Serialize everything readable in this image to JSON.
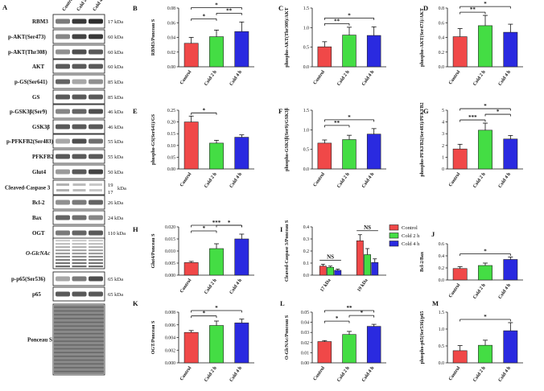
{
  "colors": {
    "control": "#f04848",
    "cold2h": "#44dd44",
    "cold4h": "#2a2ae0",
    "band": "#222222"
  },
  "western_blot": {
    "letter": "A",
    "lanes": [
      "Control",
      "Cold 2 h",
      "Cold 4 h"
    ],
    "rows": [
      {
        "label": "RBM3",
        "kda": "17 kDa"
      },
      {
        "label": "p-AKT(Ser473)",
        "kda": "60 kDa"
      },
      {
        "label": "p-AKT(Thr308)",
        "kda": "60 kDa"
      },
      {
        "label": "AKT",
        "kda": "60 kDa"
      },
      {
        "label": "p-GS(Ser641)",
        "kda": "85 kDa"
      },
      {
        "label": "GS",
        "kda": "85 kDa"
      },
      {
        "label": "p-GSK3β(Ser9)",
        "kda": "46 kDa"
      },
      {
        "label": "GSK3β",
        "kda": "46 kDa"
      },
      {
        "label": "p-PFKFB2(Ser483)",
        "kda": "55 kDa"
      },
      {
        "label": "PFKFB2",
        "kda": "55 kDa"
      },
      {
        "label": "Glut4",
        "kda": "50 kDa"
      },
      {
        "label": "Cleaved-Caspase 3",
        "kda": "19 kDa / 17 kDa"
      },
      {
        "label": "Bcl-2",
        "kda": "26 kDa"
      },
      {
        "label": "Bax",
        "kda": "24 kDa"
      },
      {
        "label": "OGT",
        "kda": "110 kDa"
      },
      {
        "label": "O-GlcNAc",
        "kda": ""
      },
      {
        "label": "p-p65(Ser536)",
        "kda": "65 kDa"
      },
      {
        "label": "p65",
        "kda": "65 kDa"
      },
      {
        "label": "Ponceau S",
        "kda": ""
      }
    ],
    "kda_19": "19",
    "kda_17": "17",
    "kda_unit": "kDa"
  },
  "legend": {
    "items": [
      "Control",
      "Cold 2 h",
      "Cold 4 h"
    ]
  },
  "chart_data": [
    {
      "letter": "B",
      "type": "bar",
      "categories": [
        "Control",
        "Cold 2 h",
        "Cold 4 h"
      ],
      "values": [
        0.032,
        0.041,
        0.048
      ],
      "errors": [
        0.008,
        0.009,
        0.013
      ],
      "ylabel": "RBM3/Ponceau S",
      "ylim": [
        0,
        0.08
      ],
      "ticks": [
        "0.00",
        "0.02",
        "0.04",
        "0.06",
        "0.08"
      ],
      "sig": [
        {
          "a": 0,
          "b": 1,
          "label": "*"
        },
        {
          "a": 1,
          "b": 2,
          "label": "**"
        },
        {
          "a": 0,
          "b": 2,
          "label": "*"
        }
      ]
    },
    {
      "letter": "C",
      "type": "bar",
      "categories": [
        "Control",
        "Cold 2 h",
        "Cold 4 h"
      ],
      "values": [
        0.51,
        0.81,
        0.8
      ],
      "errors": [
        0.13,
        0.2,
        0.22
      ],
      "ylabel": "phospho-AKT(Thr308)/AKT",
      "ylim": [
        0,
        1.5
      ],
      "ticks": [
        "0.0",
        "0.5",
        "1.0",
        "1.5"
      ],
      "sig": [
        {
          "a": 0,
          "b": 1,
          "label": "**"
        },
        {
          "a": 0,
          "b": 2,
          "label": "*"
        }
      ]
    },
    {
      "letter": "D",
      "type": "bar",
      "categories": [
        "Control",
        "Cold 2 h",
        "Cold 4 h"
      ],
      "values": [
        0.41,
        0.56,
        0.47
      ],
      "errors": [
        0.11,
        0.14,
        0.11
      ],
      "ylabel": "phospho-AKT(Ser473)/AKT",
      "ylim": [
        0,
        0.8
      ],
      "ticks": [
        "0.0",
        "0.2",
        "0.4",
        "0.6",
        "0.8"
      ],
      "sig": [
        {
          "a": 0,
          "b": 1,
          "label": "**"
        },
        {
          "a": 0,
          "b": 2,
          "label": "*"
        }
      ]
    },
    {
      "letter": "E",
      "type": "bar",
      "categories": [
        "Control",
        "Cold 2 h",
        "Cold 4 h"
      ],
      "values": [
        0.2,
        0.11,
        0.135
      ],
      "errors": [
        0.025,
        0.012,
        0.01
      ],
      "ylabel": "phospho-GS(Ser641)/GS",
      "ylim": [
        0,
        0.25
      ],
      "ticks": [
        "0.00",
        "0.05",
        "0.10",
        "0.15",
        "0.20",
        "0.25"
      ],
      "sig": [
        {
          "a": 0,
          "b": 1,
          "label": "*"
        }
      ]
    },
    {
      "letter": "F",
      "type": "bar",
      "categories": [
        "Control",
        "Cold 2 h",
        "Cold 4 h"
      ],
      "values": [
        0.66,
        0.75,
        0.89
      ],
      "errors": [
        0.08,
        0.11,
        0.14
      ],
      "ylabel": "phospho-GSK3β(Ser9)/GSK3β",
      "ylim": [
        0,
        1.5
      ],
      "ticks": [
        "0.0",
        "0.5",
        "1.0",
        "1.5"
      ],
      "sig": [
        {
          "a": 0,
          "b": 1,
          "label": "**"
        },
        {
          "a": 0,
          "b": 2,
          "label": "*"
        }
      ]
    },
    {
      "letter": "G",
      "type": "bar",
      "categories": [
        "Control",
        "Cold 2 h",
        "Cold 4 h"
      ],
      "values": [
        1.7,
        3.3,
        2.55
      ],
      "errors": [
        0.4,
        0.6,
        0.3
      ],
      "ylabel": "phospho-PFKFB2(Ser483)/PFKFB2",
      "ylim": [
        0,
        5
      ],
      "ticks": [
        "0",
        "1",
        "2",
        "3",
        "4",
        "5"
      ],
      "sig": [
        {
          "a": 0,
          "b": 1,
          "label": "***"
        },
        {
          "a": 1,
          "b": 2,
          "label": "*"
        },
        {
          "a": 0,
          "b": 2,
          "label": "*"
        }
      ]
    },
    {
      "letter": "H",
      "type": "bar",
      "categories": [
        "Control",
        "Cold 2 h",
        "Cold 4 h"
      ],
      "values": [
        0.0052,
        0.011,
        0.015
      ],
      "errors": [
        0.0005,
        0.002,
        0.002
      ],
      "ylabel": "Glut4/Ponceau S",
      "ylim": [
        0,
        0.02
      ],
      "ticks": [
        "0.000",
        "0.005",
        "0.010",
        "0.015",
        "0.020"
      ],
      "sig": [
        {
          "a": 0,
          "b": 1,
          "label": "*"
        },
        {
          "a": 1,
          "b": 2,
          "label": "*"
        },
        {
          "a": 0,
          "b": 2,
          "label": "***"
        }
      ]
    },
    {
      "letter": "I",
      "type": "grouped-bar",
      "groups": [
        "17 kDa",
        "19 kDa"
      ],
      "series": [
        {
          "name": "Control",
          "values": [
            0.075,
            0.285
          ],
          "errors": [
            0.015,
            0.05
          ]
        },
        {
          "name": "Cold 2 h",
          "values": [
            0.065,
            0.17
          ],
          "errors": [
            0.01,
            0.05
          ]
        },
        {
          "name": "Cold 4 h",
          "values": [
            0.04,
            0.105
          ],
          "errors": [
            0.01,
            0.03
          ]
        }
      ],
      "ylabel": "Cleaved-Caspase 3/Ponceau S",
      "ylim": [
        0,
        0.4
      ],
      "ticks": [
        "0.0",
        "0.1",
        "0.2",
        "0.3",
        "0.4"
      ],
      "ns": [
        "NS",
        "NS"
      ]
    },
    {
      "letter": "J",
      "type": "bar",
      "categories": [
        "Control",
        "Cold 2 h",
        "Cold 4 h"
      ],
      "values": [
        0.19,
        0.24,
        0.34
      ],
      "errors": [
        0.03,
        0.04,
        0.04
      ],
      "ylabel": "Bcl-2/Bax",
      "ylim": [
        0,
        0.6
      ],
      "ticks": [
        "0.0",
        "0.2",
        "0.4",
        "0.6"
      ],
      "sig": [
        {
          "a": 0,
          "b": 2,
          "label": "*"
        }
      ]
    },
    {
      "letter": "K",
      "type": "bar",
      "categories": [
        "Control",
        "Cold 2 h",
        "Cold 4 h"
      ],
      "values": [
        0.0048,
        0.0059,
        0.0063
      ],
      "errors": [
        0.0003,
        0.0007,
        0.0006
      ],
      "ylabel": "OGT/Ponceau S",
      "ylim": [
        0,
        0.008
      ],
      "ticks": [
        "0.000",
        "0.002",
        "0.004",
        "0.006",
        "0.008"
      ],
      "sig": [
        {
          "a": 0,
          "b": 1,
          "label": "*"
        },
        {
          "a": 0,
          "b": 2,
          "label": "*"
        }
      ]
    },
    {
      "letter": "L",
      "type": "bar",
      "categories": [
        "Control",
        "Cold 2 h",
        "Cold 4 h"
      ],
      "values": [
        0.021,
        0.028,
        0.036
      ],
      "errors": [
        0.001,
        0.003,
        0.002
      ],
      "ylabel": "O-GlcNAc/Ponceau S",
      "ylim": [
        0,
        0.05
      ],
      "ticks": [
        "0.00",
        "0.01",
        "0.02",
        "0.03",
        "0.04",
        "0.05"
      ],
      "sig": [
        {
          "a": 0,
          "b": 1,
          "label": "*"
        },
        {
          "a": 1,
          "b": 2,
          "label": "*"
        },
        {
          "a": 0,
          "b": 2,
          "label": "**"
        }
      ]
    },
    {
      "letter": "M",
      "type": "bar",
      "categories": [
        "Control",
        "Cold 2 h",
        "Cold 4 h"
      ],
      "values": [
        0.36,
        0.52,
        0.95
      ],
      "errors": [
        0.15,
        0.15,
        0.24
      ],
      "ylabel": "phospho-p65(Ser536)/p65",
      "ylim": [
        0,
        1.5
      ],
      "ticks": [
        "0.0",
        "0.5",
        "1.0",
        "1.5"
      ],
      "sig": [
        {
          "a": 0,
          "b": 2,
          "label": "*"
        }
      ]
    }
  ]
}
